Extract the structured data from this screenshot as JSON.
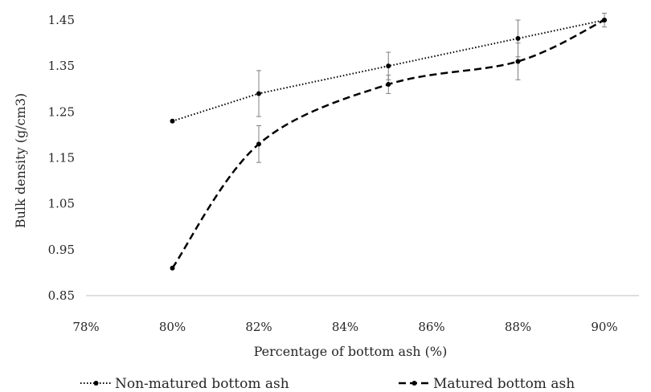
{
  "chart_data": {
    "type": "line",
    "xlabel": "Percentage of bottom ash (%)",
    "ylabel": "Bulk density (g/cm3)",
    "x_ticks": [
      "78%",
      "80%",
      "82%",
      "84%",
      "86%",
      "88%",
      "90%"
    ],
    "y_ticks": [
      "0.85",
      "0.95",
      "1.05",
      "1.15",
      "1.25",
      "1.35",
      "1.45"
    ],
    "xlim": [
      78,
      90.8
    ],
    "ylim": [
      0.85,
      1.45
    ],
    "grid": false,
    "legend_position": "bottom",
    "series": [
      {
        "name": "Non-matured bottom ash",
        "line_style": "dotted",
        "color": "#000000",
        "x": [
          80,
          82,
          85,
          88,
          90
        ],
        "y": [
          1.23,
          1.29,
          1.35,
          1.41,
          1.45
        ],
        "error": [
          null,
          0.05,
          0.03,
          0.04,
          null
        ]
      },
      {
        "name": "Matured bottom ash",
        "line_style": "dashed",
        "color": "#000000",
        "x": [
          80,
          82,
          85,
          88,
          90
        ],
        "y": [
          0.91,
          1.18,
          1.31,
          1.36,
          1.45
        ],
        "error": [
          null,
          0.04,
          0.02,
          0.04,
          0.015
        ]
      }
    ]
  }
}
